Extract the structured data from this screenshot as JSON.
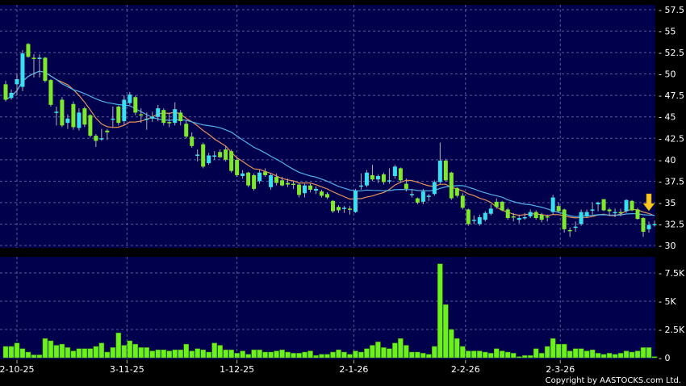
{
  "chart_data": [
    {
      "type": "candlestick",
      "title": "",
      "ylim": [
        30,
        57.5
      ],
      "y_ticks": [
        "30",
        "32.5",
        "35",
        "37.5",
        "40",
        "42.5",
        "45",
        "47.5",
        "50",
        "52.5",
        "55",
        "57.5"
      ],
      "y_tick_values": [
        30,
        32.5,
        35,
        37.5,
        40,
        42.5,
        45,
        47.5,
        50,
        52.5,
        55,
        57.5
      ],
      "x_labels": [
        {
          "label": "2-10-25",
          "index": 2
        },
        {
          "label": "3-11-25",
          "index": 21.5
        },
        {
          "label": "1-12-25",
          "index": 41
        },
        {
          "label": "2-1-26",
          "index": 61.7
        },
        {
          "label": "2-2-26",
          "index": 81.5
        },
        {
          "label": "2-3-26",
          "index": 98.3
        }
      ],
      "grid": true,
      "moving_averages": [
        {
          "period": 10,
          "color": "#e8905a"
        },
        {
          "period": 20,
          "color": "#52b0ea"
        }
      ],
      "up_color": "#38e0f0",
      "down_color": "#7ee82a",
      "marker": {
        "type": "down-arrow",
        "index": 114,
        "color": "#f8c820"
      },
      "ohlc": [
        [
          48.8,
          49.2,
          46.8,
          47.0
        ],
        [
          47.2,
          48.2,
          47.0,
          47.8
        ],
        [
          48.8,
          50.0,
          47.5,
          49.4
        ],
        [
          48.5,
          52.8,
          48.0,
          52.4
        ],
        [
          53.5,
          53.6,
          51.9,
          52.0
        ],
        [
          51.9,
          52.3,
          49.6,
          51.8
        ],
        [
          51.8,
          52.3,
          49.6,
          51.9
        ],
        [
          51.9,
          52.0,
          49.0,
          49.2
        ],
        [
          49.3,
          49.4,
          46.2,
          46.4
        ],
        [
          45.6,
          46.2,
          44.0,
          45.6
        ],
        [
          47.0,
          47.3,
          43.8,
          44.0
        ],
        [
          44.3,
          45.3,
          43.6,
          44.8
        ],
        [
          46.5,
          46.8,
          43.5,
          43.8
        ],
        [
          43.7,
          46.0,
          43.4,
          45.5
        ],
        [
          46.0,
          46.2,
          43.8,
          44.1
        ],
        [
          45.2,
          45.3,
          42.6,
          42.8
        ],
        [
          42.8,
          43.0,
          41.5,
          42.2
        ],
        [
          42.5,
          43.6,
          42.2,
          42.5
        ],
        [
          43.4,
          43.6,
          42.3,
          43.2
        ],
        [
          44.8,
          46.2,
          43.8,
          44.8
        ],
        [
          46.2,
          46.3,
          44.0,
          44.3
        ],
        [
          44.5,
          47.5,
          44.0,
          47.0
        ],
        [
          46.6,
          47.9,
          46.4,
          47.6
        ],
        [
          47.3,
          47.5,
          45.2,
          45.5
        ],
        [
          45.3,
          46.0,
          44.3,
          45.2
        ],
        [
          44.8,
          45.5,
          43.5,
          44.8
        ],
        [
          44.8,
          45.6,
          44.4,
          45.0
        ],
        [
          45.0,
          46.4,
          44.5,
          46.0
        ],
        [
          45.8,
          46.0,
          44.0,
          44.3
        ],
        [
          44.4,
          45.5,
          43.8,
          44.3
        ],
        [
          44.3,
          46.7,
          44.0,
          45.9
        ],
        [
          45.5,
          45.8,
          44.0,
          44.5
        ],
        [
          44.2,
          44.6,
          42.5,
          42.7
        ],
        [
          42.7,
          43.2,
          41.4,
          41.6
        ],
        [
          40.6,
          41.2,
          39.8,
          40.6
        ],
        [
          41.8,
          42.0,
          39.0,
          39.2
        ],
        [
          39.6,
          40.8,
          39.4,
          40.5
        ],
        [
          40.5,
          41.0,
          40.0,
          40.5
        ],
        [
          40.9,
          41.2,
          40.2,
          40.3
        ],
        [
          41.2,
          41.6,
          39.8,
          40.0
        ],
        [
          41.0,
          41.2,
          38.5,
          38.7
        ],
        [
          40.0,
          40.2,
          38.0,
          38.2
        ],
        [
          38.1,
          38.8,
          37.8,
          38.4
        ],
        [
          38.5,
          38.6,
          36.8,
          37.0
        ],
        [
          38.2,
          38.4,
          36.4,
          36.6
        ],
        [
          37.5,
          38.8,
          37.2,
          38.5
        ],
        [
          38.6,
          39.0,
          38.0,
          38.2
        ],
        [
          36.8,
          38.4,
          36.5,
          38.2
        ],
        [
          38.0,
          38.4,
          37.0,
          37.3
        ],
        [
          37.6,
          38.0,
          36.9,
          37.0
        ],
        [
          37.3,
          37.8,
          36.8,
          37.1
        ],
        [
          37.2,
          37.5,
          36.6,
          37.1
        ],
        [
          37.1,
          37.3,
          35.6,
          35.9
        ],
        [
          36.1,
          37.2,
          35.6,
          37.0
        ],
        [
          37.0,
          37.2,
          36.2,
          36.5
        ],
        [
          36.4,
          36.9,
          36.0,
          36.6
        ],
        [
          36.3,
          36.5,
          35.6,
          35.8
        ],
        [
          36.0,
          36.2,
          35.4,
          35.6
        ],
        [
          35.2,
          35.3,
          33.8,
          34.0
        ],
        [
          34.5,
          34.7,
          33.8,
          34.1
        ],
        [
          34.4,
          34.6,
          33.8,
          34.4
        ],
        [
          34.3,
          34.6,
          33.6,
          34.2
        ],
        [
          33.9,
          36.6,
          33.8,
          36.4
        ],
        [
          36.9,
          38.4,
          36.5,
          37.0
        ],
        [
          37.0,
          38.8,
          36.8,
          38.5
        ],
        [
          38.2,
          39.4,
          37.5,
          37.7
        ],
        [
          37.7,
          38.3,
          37.3,
          38.1
        ],
        [
          38.3,
          38.5,
          37.1,
          37.4
        ],
        [
          37.6,
          39.0,
          37.2,
          37.6
        ],
        [
          38.1,
          39.4,
          37.8,
          39.2
        ],
        [
          39.0,
          39.1,
          37.3,
          37.6
        ],
        [
          37.2,
          37.8,
          36.3,
          36.6
        ],
        [
          36.0,
          36.6,
          35.6,
          36.0
        ],
        [
          35.5,
          35.6,
          34.8,
          35.0
        ],
        [
          35.1,
          36.6,
          34.8,
          36.3
        ],
        [
          35.8,
          36.0,
          35.2,
          35.8
        ],
        [
          36.0,
          37.6,
          35.8,
          37.4
        ],
        [
          37.4,
          42.0,
          37.2,
          39.9
        ],
        [
          39.9,
          40.1,
          37.4,
          37.6
        ],
        [
          38.5,
          38.6,
          35.3,
          35.5
        ],
        [
          36.7,
          36.8,
          35.6,
          35.8
        ],
        [
          35.8,
          36.1,
          34.2,
          34.4
        ],
        [
          34.2,
          34.3,
          32.3,
          32.5
        ],
        [
          33.0,
          33.5,
          32.5,
          33.0
        ],
        [
          32.5,
          33.6,
          32.3,
          33.3
        ],
        [
          33.0,
          34.0,
          32.8,
          33.8
        ],
        [
          33.7,
          34.8,
          33.5,
          34.3
        ],
        [
          35.1,
          35.5,
          34.3,
          34.5
        ],
        [
          35.1,
          35.2,
          34.0,
          34.1
        ],
        [
          34.2,
          34.4,
          33.0,
          33.2
        ],
        [
          33.4,
          33.8,
          32.8,
          33.3
        ],
        [
          33.0,
          33.6,
          32.6,
          33.2
        ],
        [
          33.3,
          33.8,
          33.0,
          33.3
        ],
        [
          33.4,
          34.2,
          33.2,
          33.9
        ],
        [
          33.9,
          34.1,
          33.0,
          33.2
        ],
        [
          33.6,
          33.8,
          32.7,
          33.0
        ],
        [
          33.4,
          33.6,
          32.8,
          33.3
        ],
        [
          33.9,
          35.9,
          33.6,
          35.6
        ],
        [
          34.6,
          35.0,
          33.8,
          34.0
        ],
        [
          34.2,
          34.3,
          31.5,
          31.9
        ],
        [
          31.8,
          32.1,
          31.0,
          31.7
        ],
        [
          32.2,
          32.8,
          31.6,
          32.2
        ],
        [
          32.5,
          34.2,
          32.3,
          33.9
        ],
        [
          33.4,
          34.2,
          33.2,
          33.9
        ],
        [
          34.2,
          35.0,
          33.6,
          34.2
        ],
        [
          34.8,
          35.1,
          34.0,
          35.0
        ],
        [
          35.4,
          35.4,
          34.0,
          34.1
        ],
        [
          34.2,
          34.4,
          33.5,
          34.0
        ],
        [
          33.8,
          34.3,
          33.3,
          33.9
        ],
        [
          33.9,
          34.3,
          33.4,
          33.8
        ],
        [
          34.0,
          35.4,
          33.8,
          35.3
        ],
        [
          35.2,
          35.3,
          34.0,
          34.1
        ],
        [
          34.2,
          34.4,
          33.0,
          33.1
        ],
        [
          33.2,
          33.3,
          31.0,
          31.6
        ],
        [
          31.9,
          32.8,
          31.5,
          32.4
        ],
        [
          32.5,
          32.9,
          32.2,
          32.5
        ]
      ]
    },
    {
      "type": "bar",
      "title": "",
      "ylim": [
        0,
        8.9
      ],
      "y_ticks": [
        "0",
        "2.5K",
        "5K",
        "7.5K"
      ],
      "y_tick_values": [
        0,
        2.5,
        5,
        7.5
      ],
      "bar_color": "#6ef01e",
      "values_k": [
        1.0,
        1.0,
        1.3,
        0.8,
        0.5,
        0.25,
        0.25,
        1.7,
        1.5,
        1.1,
        1.2,
        0.9,
        0.6,
        0.8,
        0.8,
        0.8,
        1.0,
        1.3,
        0.5,
        0.9,
        2.2,
        1.1,
        1.5,
        1.2,
        0.9,
        0.9,
        0.6,
        0.7,
        0.7,
        0.6,
        0.7,
        0.7,
        1.2,
        0.6,
        0.8,
        0.7,
        0.5,
        1.3,
        1.1,
        0.7,
        0.7,
        0.4,
        0.6,
        0.3,
        0.7,
        0.7,
        0.5,
        0.5,
        0.6,
        0.7,
        0.5,
        0.4,
        0.4,
        0.5,
        0.6,
        0.2,
        0.3,
        0.3,
        0.5,
        0.7,
        0.5,
        0.3,
        0.6,
        0.5,
        0.8,
        1.1,
        1.4,
        0.9,
        0.8,
        1.3,
        1.7,
        1.1,
        0.5,
        0.5,
        0.4,
        0.3,
        1.0,
        8.3,
        4.7,
        2.5,
        1.7,
        1.0,
        0.6,
        0.6,
        0.6,
        0.5,
        0.4,
        0.8,
        0.6,
        0.5,
        0.4,
        0.1,
        0.2,
        0.2,
        0.8,
        0.4,
        1.0,
        1.7,
        1.2,
        1.2,
        0.6,
        0.8,
        0.8,
        0.6,
        0.7,
        0.4,
        0.3,
        0.4,
        0.3,
        0.4,
        0.6,
        0.5,
        0.6,
        0.9,
        0.9,
        0.1
      ]
    }
  ],
  "footer": {
    "copyright": "Copyright by AASTOCKS.com Ltd."
  }
}
